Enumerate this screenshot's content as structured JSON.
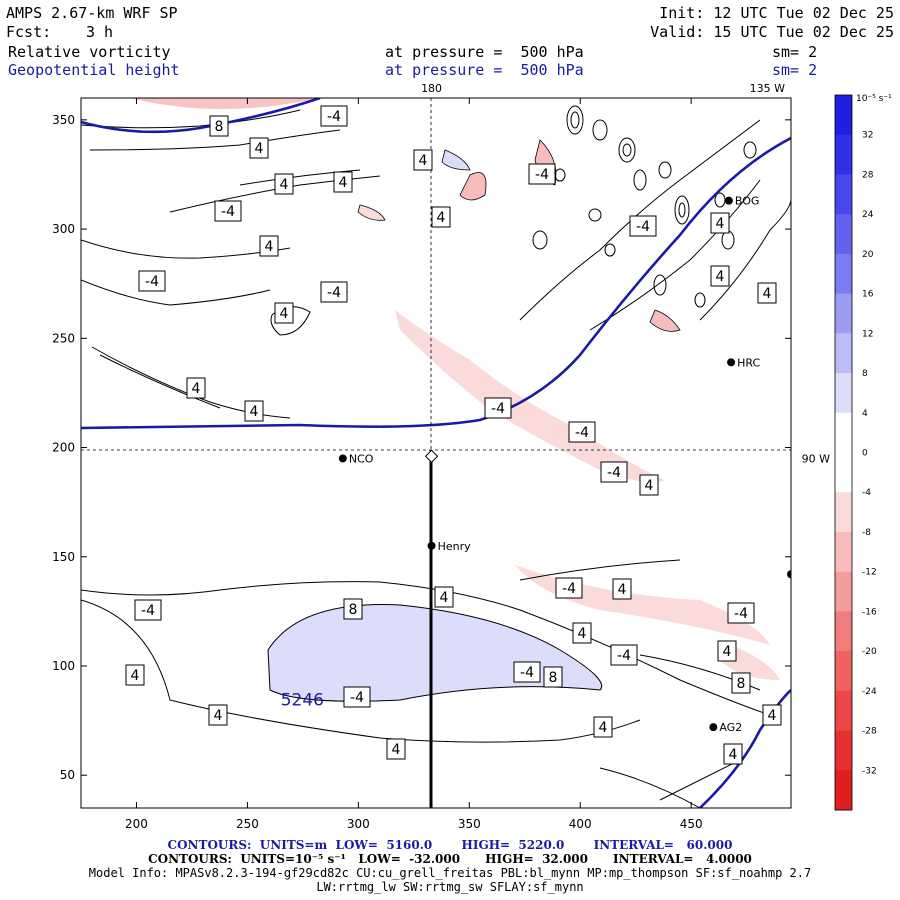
{
  "header": {
    "model": "AMPS 2.67-km WRF SP",
    "init": "Init: 12 UTC Tue 02 Dec 25",
    "fcst_label": "Fcst:",
    "fcst_value": "3 h",
    "valid": "Valid: 15 UTC Tue 02 Dec 25",
    "field1_name": "Relative vorticity",
    "field1_level": "at pressure =  500 hPa",
    "field1_sm": "sm= 2",
    "field2_name": "Geopotential height",
    "field2_level": "at pressure =  500 hPa",
    "field2_sm": "sm= 2"
  },
  "colors": {
    "height_contour": "#1a1aa6",
    "accent_blue": "#1a1aa6"
  },
  "chart_data": {
    "type": "contour",
    "xlim": [
      175,
      495
    ],
    "ylim": [
      35,
      360
    ],
    "xticks": [
      200,
      250,
      300,
      350,
      400,
      450
    ],
    "yticks": [
      50,
      100,
      150,
      200,
      250,
      300,
      350
    ],
    "meridian_labels": {
      "top_180": "180",
      "top_135w": "135 W",
      "right_90w": "90 W"
    },
    "stations": [
      {
        "name": "NCO",
        "x": 293,
        "y": 195
      },
      {
        "name": "Henry",
        "x": 333,
        "y": 155
      },
      {
        "name": "HRC",
        "x": 468,
        "y": 239
      },
      {
        "name": "AG2",
        "x": 460,
        "y": 72
      },
      {
        "name": "BOG",
        "x": 467,
        "y": 313
      },
      {
        "name": "",
        "x": 495,
        "y": 142
      }
    ],
    "height_label": "5246",
    "contour_labels": [
      "8",
      "-4",
      "4",
      "4",
      "4",
      "4",
      "-4",
      "-4",
      "4",
      "-4",
      "4",
      "4",
      "-4",
      "-4",
      "4",
      "4",
      "4",
      "4",
      "-4",
      "4",
      "-4",
      "-4",
      "4",
      "4",
      "-4",
      "-4",
      "4",
      "8",
      "4",
      "-4",
      "-4",
      "4",
      "4",
      "-4",
      "8",
      "8",
      "-4",
      "4",
      "4",
      "4",
      "4",
      "4"
    ],
    "colorbar": {
      "unit": "10⁻⁵ s⁻¹",
      "ticks": [
        "32",
        "28",
        "24",
        "20",
        "16",
        "12",
        "8",
        "4",
        "0",
        "-4",
        "-8",
        "-12",
        "-16",
        "-20",
        "-24",
        "-28",
        "-32"
      ],
      "colors": [
        "#1f1fe0",
        "#3030e6",
        "#4848ea",
        "#6262ee",
        "#7c7cf1",
        "#9c9cf4",
        "#bcbcf8",
        "#dcdcfb",
        "#ffffff",
        "#ffffff",
        "#fbdada",
        "#f8bcbc",
        "#f49c9c",
        "#f17c7c",
        "#ee6262",
        "#ea4848",
        "#e63030",
        "#e01f1f"
      ]
    }
  },
  "footer": {
    "line1": "CONTOURS:  UNITS=m  LOW=  5160.0       HIGH=  5220.0       INTERVAL=   60.000",
    "line2": "CONTOURS:  UNITS=10⁻⁵ s⁻¹   LOW=  -32.000      HIGH=  32.000      INTERVAL=   4.0000",
    "line3": "Model Info: MPASv8.2.3-194-gf29cd82c CU:cu_grell_freitas PBL:bl_mynn MP:mp_thompson SF:sf_noahmp 2.7",
    "line4": "LW:rrtmg_lw SW:rrtmg_sw SFLAY:sf_mynn"
  }
}
